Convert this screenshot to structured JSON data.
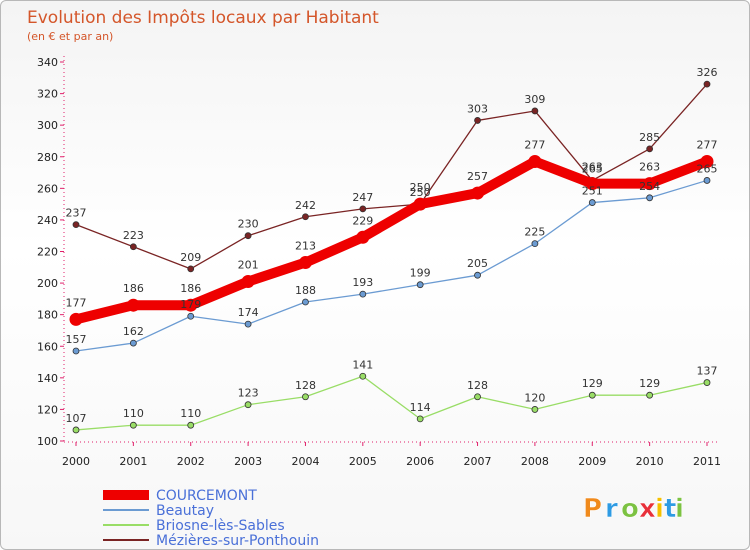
{
  "chart_data": {
    "type": "line",
    "title": "Evolution des Impôts locaux par Habitant",
    "subtitle": "(en € et par an)",
    "x": [
      "2000",
      "2001",
      "2002",
      "2003",
      "2004",
      "2005",
      "2006",
      "2007",
      "2008",
      "2009",
      "2010",
      "2011"
    ],
    "ylim": [
      100,
      340
    ],
    "yticks": [
      100,
      120,
      140,
      160,
      180,
      200,
      220,
      240,
      260,
      280,
      300,
      320,
      340
    ],
    "grid": false,
    "legend_position": "bottom-left",
    "series": [
      {
        "name": "COURCEMONT",
        "color": "#ee0000",
        "values": [
          177,
          186,
          186,
          201,
          213,
          229,
          250,
          257,
          277,
          263,
          263,
          277
        ],
        "labels": [
          "177",
          "186",
          "186",
          "201",
          "213",
          "229",
          "250",
          "257",
          "277",
          "263",
          "263",
          "277"
        ]
      },
      {
        "name": "Beautay",
        "color": "#6b9bd2",
        "values": [
          157,
          162,
          179,
          174,
          188,
          193,
          199,
          205,
          225,
          251,
          254,
          265
        ],
        "labels": [
          "157",
          "162",
          "179",
          "174",
          "188",
          "193",
          "199",
          "205",
          "225",
          "251",
          "254",
          "265"
        ]
      },
      {
        "name": "Briosne-lès-Sables",
        "color": "#99dd66",
        "values": [
          107,
          110,
          110,
          123,
          128,
          141,
          114,
          128,
          120,
          129,
          129,
          137
        ],
        "labels": [
          "107",
          "110",
          "110",
          "123",
          "128",
          "141",
          "114",
          "128",
          "120",
          "129",
          "129",
          "137"
        ]
      },
      {
        "name": "Mézières-sur-Ponthouin",
        "color": "#7a2424",
        "values": [
          237,
          223,
          209,
          230,
          242,
          247,
          250,
          303,
          309,
          265,
          285,
          326
        ],
        "labels": [
          "237",
          "223",
          "209",
          "230",
          "242",
          "247",
          "250",
          "303",
          "309",
          "265",
          "285",
          "326"
        ]
      }
    ]
  },
  "brand": {
    "text": "Proxiti",
    "letters": [
      "P",
      "r",
      "o",
      "x",
      "i",
      "t",
      "i"
    ],
    "colors": [
      "#f08a1c",
      "#2e9be3",
      "#7cc242",
      "#e8303a",
      "#f5c000",
      "#2e9be3",
      "#7cc242"
    ]
  }
}
